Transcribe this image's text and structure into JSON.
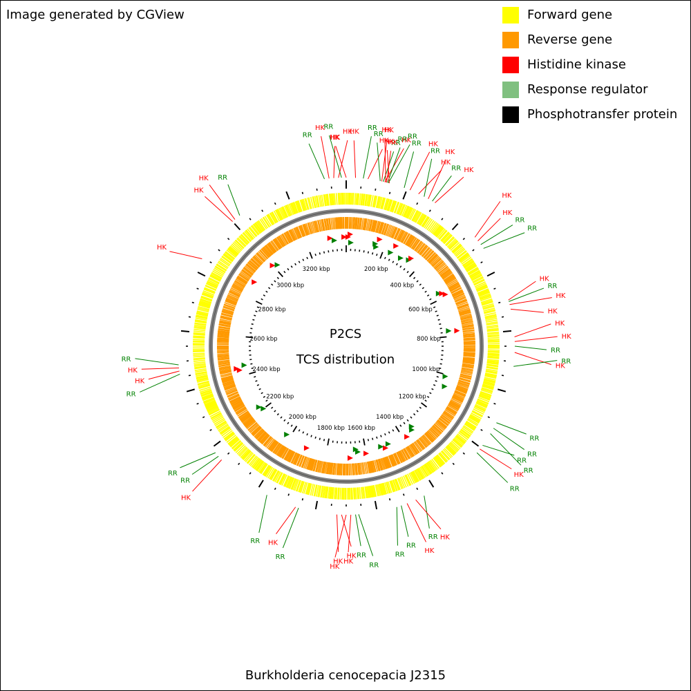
{
  "credit": "Image generated by CGView",
  "organism": "Burkholderia cenocepacia J2315",
  "center": {
    "line1": "P2CS",
    "line2": "TCS distribution"
  },
  "legend": [
    {
      "label": "Forward gene",
      "color": "#ffff00"
    },
    {
      "label": "Reverse gene",
      "color": "#ff9900"
    },
    {
      "label": "Histidine kinase",
      "color": "#ff0000"
    },
    {
      "label": "Response regulator",
      "color": "#80c080"
    },
    {
      "label": "Phosphotransfer protein",
      "color": "#000000"
    }
  ],
  "colors": {
    "hk": "#ff0000",
    "rr": "#008000",
    "backbone": "#808080"
  },
  "chart_data": {
    "type": "circular-genome-map",
    "genome_length_kbp": 3400,
    "tick_labels": [
      "200 kbp",
      "400 kbp",
      "600 kbp",
      "800 kbp",
      "1000 kbp",
      "1200 kbp",
      "1400 kbp",
      "1600 kbp",
      "1800 kbp",
      "2000 kbp",
      "2200 kbp",
      "2400 kbp",
      "2600 kbp",
      "2800 kbp",
      "3000 kbp",
      "3200 kbp"
    ],
    "tick_positions_kbp": [
      200,
      400,
      600,
      800,
      1000,
      1200,
      1400,
      1600,
      1800,
      2000,
      2200,
      2400,
      2600,
      2800,
      3000,
      3200
    ],
    "callouts": [
      {
        "label": "RR",
        "type": "rr",
        "pos_kbp": 3330
      },
      {
        "label": "HK",
        "type": "hk",
        "pos_kbp": 3345
      },
      {
        "label": "HK",
        "type": "hk",
        "pos_kbp": 3360
      },
      {
        "label": "HK",
        "type": "hk",
        "pos_kbp": 3375
      },
      {
        "label": "RR",
        "type": "rr",
        "pos_kbp": 3385
      },
      {
        "label": "HK",
        "type": "hk",
        "pos_kbp": 0
      },
      {
        "label": "HK",
        "type": "hk",
        "pos_kbp": 30
      },
      {
        "label": "RR",
        "type": "rr",
        "pos_kbp": 55
      },
      {
        "label": "HK",
        "type": "hk",
        "pos_kbp": 70
      },
      {
        "label": "RR",
        "type": "rr",
        "pos_kbp": 110
      },
      {
        "label": "HK",
        "type": "hk",
        "pos_kbp": 115
      },
      {
        "label": "RR",
        "type": "rr",
        "pos_kbp": 120
      },
      {
        "label": "HK",
        "type": "hk",
        "pos_kbp": 125
      },
      {
        "label": "HK",
        "type": "hk",
        "pos_kbp": 128
      },
      {
        "label": "HK",
        "type": "hk",
        "pos_kbp": 131
      },
      {
        "label": "RR",
        "type": "rr",
        "pos_kbp": 134
      },
      {
        "label": "RR",
        "type": "rr",
        "pos_kbp": 137
      },
      {
        "label": "HK",
        "type": "hk",
        "pos_kbp": 140
      },
      {
        "label": "RR",
        "type": "rr",
        "pos_kbp": 190
      },
      {
        "label": "HK",
        "type": "hk",
        "pos_kbp": 210
      },
      {
        "label": "HK",
        "type": "hk",
        "pos_kbp": 240
      },
      {
        "label": "RR",
        "type": "rr",
        "pos_kbp": 260
      },
      {
        "label": "HK",
        "type": "hk",
        "pos_kbp": 275
      },
      {
        "label": "RR",
        "type": "rr",
        "pos_kbp": 290
      },
      {
        "label": "HK",
        "type": "hk",
        "pos_kbp": 300
      },
      {
        "label": "HK",
        "type": "hk",
        "pos_kbp": 470
      },
      {
        "label": "HK",
        "type": "hk",
        "pos_kbp": 485
      },
      {
        "label": "RR",
        "type": "rr",
        "pos_kbp": 500
      },
      {
        "label": "RR",
        "type": "rr",
        "pos_kbp": 515
      },
      {
        "label": "HK",
        "type": "hk",
        "pos_kbp": 700
      },
      {
        "label": "RR",
        "type": "rr",
        "pos_kbp": 705
      },
      {
        "label": "HK",
        "type": "hk",
        "pos_kbp": 715
      },
      {
        "label": "HK",
        "type": "hk",
        "pos_kbp": 730
      },
      {
        "label": "HK",
        "type": "hk",
        "pos_kbp": 820
      },
      {
        "label": "HK",
        "type": "hk",
        "pos_kbp": 835
      },
      {
        "label": "RR",
        "type": "rr",
        "pos_kbp": 850
      },
      {
        "label": "HK",
        "type": "hk",
        "pos_kbp": 870
      },
      {
        "label": "RR",
        "type": "rr",
        "pos_kbp": 915
      },
      {
        "label": "RR",
        "type": "rr",
        "pos_kbp": 1105
      },
      {
        "label": "RR",
        "type": "rr",
        "pos_kbp": 1125
      },
      {
        "label": "RR",
        "type": "rr",
        "pos_kbp": 1145
      },
      {
        "label": "RR",
        "type": "rr",
        "pos_kbp": 1190
      },
      {
        "label": "HK",
        "type": "hk",
        "pos_kbp": 1205
      },
      {
        "label": "RR",
        "type": "rr",
        "pos_kbp": 1220
      },
      {
        "label": "RR",
        "type": "rr",
        "pos_kbp": 1440
      },
      {
        "label": "HK",
        "type": "hk",
        "pos_kbp": 1470
      },
      {
        "label": "HK",
        "type": "hk",
        "pos_kbp": 1500
      },
      {
        "label": "RR",
        "type": "rr",
        "pos_kbp": 1520
      },
      {
        "label": "RR",
        "type": "rr",
        "pos_kbp": 1535
      },
      {
        "label": "RR",
        "type": "rr",
        "pos_kbp": 1660
      },
      {
        "label": "RR",
        "type": "rr",
        "pos_kbp": 1670
      },
      {
        "label": "HK",
        "type": "hk",
        "pos_kbp": 1685
      },
      {
        "label": "HK",
        "type": "hk",
        "pos_kbp": 1700
      },
      {
        "label": "HK",
        "type": "hk",
        "pos_kbp": 1715
      },
      {
        "label": "HK",
        "type": "hk",
        "pos_kbp": 1730
      },
      {
        "label": "RR",
        "type": "rr",
        "pos_kbp": 1855
      },
      {
        "label": "HK",
        "type": "hk",
        "pos_kbp": 1865
      },
      {
        "label": "RR",
        "type": "rr",
        "pos_kbp": 1965
      },
      {
        "label": "HK",
        "type": "hk",
        "pos_kbp": 2150
      },
      {
        "label": "RR",
        "type": "rr",
        "pos_kbp": 2165
      },
      {
        "label": "RR",
        "type": "rr",
        "pos_kbp": 2180
      },
      {
        "label": "RR",
        "type": "rr",
        "pos_kbp": 2460
      },
      {
        "label": "HK",
        "type": "hk",
        "pos_kbp": 2470
      },
      {
        "label": "HK",
        "type": "hk",
        "pos_kbp": 2480
      },
      {
        "label": "RR",
        "type": "rr",
        "pos_kbp": 2490
      },
      {
        "label": "HK",
        "type": "hk",
        "pos_kbp": 2845
      },
      {
        "label": "HK",
        "type": "hk",
        "pos_kbp": 3000
      },
      {
        "label": "HK",
        "type": "hk",
        "pos_kbp": 3010
      },
      {
        "label": "RR",
        "type": "rr",
        "pos_kbp": 3030
      }
    ],
    "tcs_markers": [
      {
        "type": "hk",
        "pos_kbp": 10
      },
      {
        "type": "hk",
        "pos_kbp": 20
      },
      {
        "type": "rr",
        "pos_kbp": 25
      },
      {
        "type": "rr",
        "pos_kbp": 150
      },
      {
        "type": "rr",
        "pos_kbp": 158
      },
      {
        "type": "hk",
        "pos_kbp": 165
      },
      {
        "type": "rr",
        "pos_kbp": 240
      },
      {
        "type": "hk",
        "pos_kbp": 250
      },
      {
        "type": "rr",
        "pos_kbp": 300
      },
      {
        "type": "rr",
        "pos_kbp": 340
      },
      {
        "type": "hk",
        "pos_kbp": 345
      },
      {
        "type": "rr",
        "pos_kbp": 570
      },
      {
        "type": "hk",
        "pos_kbp": 578
      },
      {
        "type": "hk",
        "pos_kbp": 590
      },
      {
        "type": "rr",
        "pos_kbp": 770
      },
      {
        "type": "hk",
        "pos_kbp": 775
      },
      {
        "type": "rr",
        "pos_kbp": 1010
      },
      {
        "type": "rr",
        "pos_kbp": 1060
      },
      {
        "type": "rr",
        "pos_kbp": 1330
      },
      {
        "type": "rr",
        "pos_kbp": 1340
      },
      {
        "type": "hk",
        "pos_kbp": 1380
      },
      {
        "type": "rr",
        "pos_kbp": 1480
      },
      {
        "type": "hk",
        "pos_kbp": 1500
      },
      {
        "type": "rr",
        "pos_kbp": 1520
      },
      {
        "type": "hk",
        "pos_kbp": 1600
      },
      {
        "type": "rr",
        "pos_kbp": 1640
      },
      {
        "type": "rr",
        "pos_kbp": 1650
      },
      {
        "type": "hk",
        "pos_kbp": 1680
      },
      {
        "type": "hk",
        "pos_kbp": 1900
      },
      {
        "type": "rr",
        "pos_kbp": 2020
      },
      {
        "type": "rr",
        "pos_kbp": 2200
      },
      {
        "type": "rr",
        "pos_kbp": 2220
      },
      {
        "type": "hk",
        "pos_kbp": 2430
      },
      {
        "type": "hk",
        "pos_kbp": 2440
      },
      {
        "type": "rr",
        "pos_kbp": 2450
      },
      {
        "type": "hk",
        "pos_kbp": 2880
      },
      {
        "type": "hk",
        "pos_kbp": 3000
      },
      {
        "type": "rr",
        "pos_kbp": 3020
      },
      {
        "type": "hk",
        "pos_kbp": 3320
      },
      {
        "type": "rr",
        "pos_kbp": 3340
      },
      {
        "type": "hk",
        "pos_kbp": 3390
      }
    ]
  }
}
